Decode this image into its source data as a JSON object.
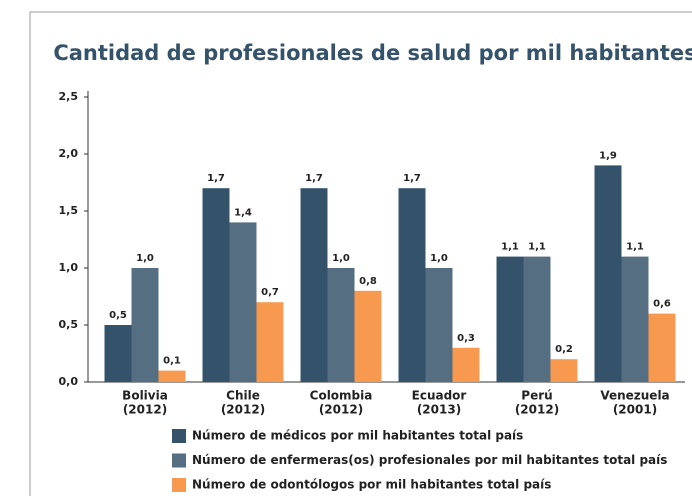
{
  "chart_data": {
    "type": "bar",
    "title": "Cantidad de profesionales de salud por mil habitantes",
    "categories": [
      [
        "Bolivia",
        "(2012)"
      ],
      [
        "Chile",
        "(2012)"
      ],
      [
        "Colombia",
        "(2012)"
      ],
      [
        "Ecuador",
        "(2013)"
      ],
      [
        "Perú",
        "(2012)"
      ],
      [
        "Venezuela",
        "(2001)"
      ]
    ],
    "series": [
      {
        "name": "Número de médicos por mil habitantes total país",
        "color": "#34536a",
        "values": [
          0.5,
          1.7,
          1.7,
          1.7,
          1.1,
          1.9
        ],
        "value_labels": [
          "0,5",
          "1,7",
          "1,7",
          "1,7",
          "1,1",
          "1,9"
        ]
      },
      {
        "name": "Número de enfermeras(os) profesionales por mil habitantes total país",
        "color": "#566e82",
        "values": [
          1.0,
          1.4,
          1.0,
          1.0,
          1.1,
          1.1
        ],
        "value_labels": [
          "1,0",
          "1,4",
          "1,0",
          "1,0",
          "1,1",
          "1,1"
        ]
      },
      {
        "name": "Número de odontólogos por mil habitantes total país",
        "color": "#f79a50",
        "values": [
          0.1,
          0.7,
          0.8,
          0.3,
          0.2,
          0.6
        ],
        "value_labels": [
          "0,1",
          "0,7",
          "0,8",
          "0,3",
          "0,2",
          "0,6"
        ]
      }
    ],
    "ylim": [
      0,
      2.5
    ],
    "yticks": [
      {
        "value": 0,
        "label": "0,0"
      },
      {
        "value": 0.5,
        "label": "0,5"
      },
      {
        "value": 1,
        "label": "1,0"
      },
      {
        "value": 1.5,
        "label": "1,5"
      },
      {
        "value": 2,
        "label": "2,0"
      },
      {
        "value": 2.5,
        "label": "2,5"
      }
    ]
  }
}
